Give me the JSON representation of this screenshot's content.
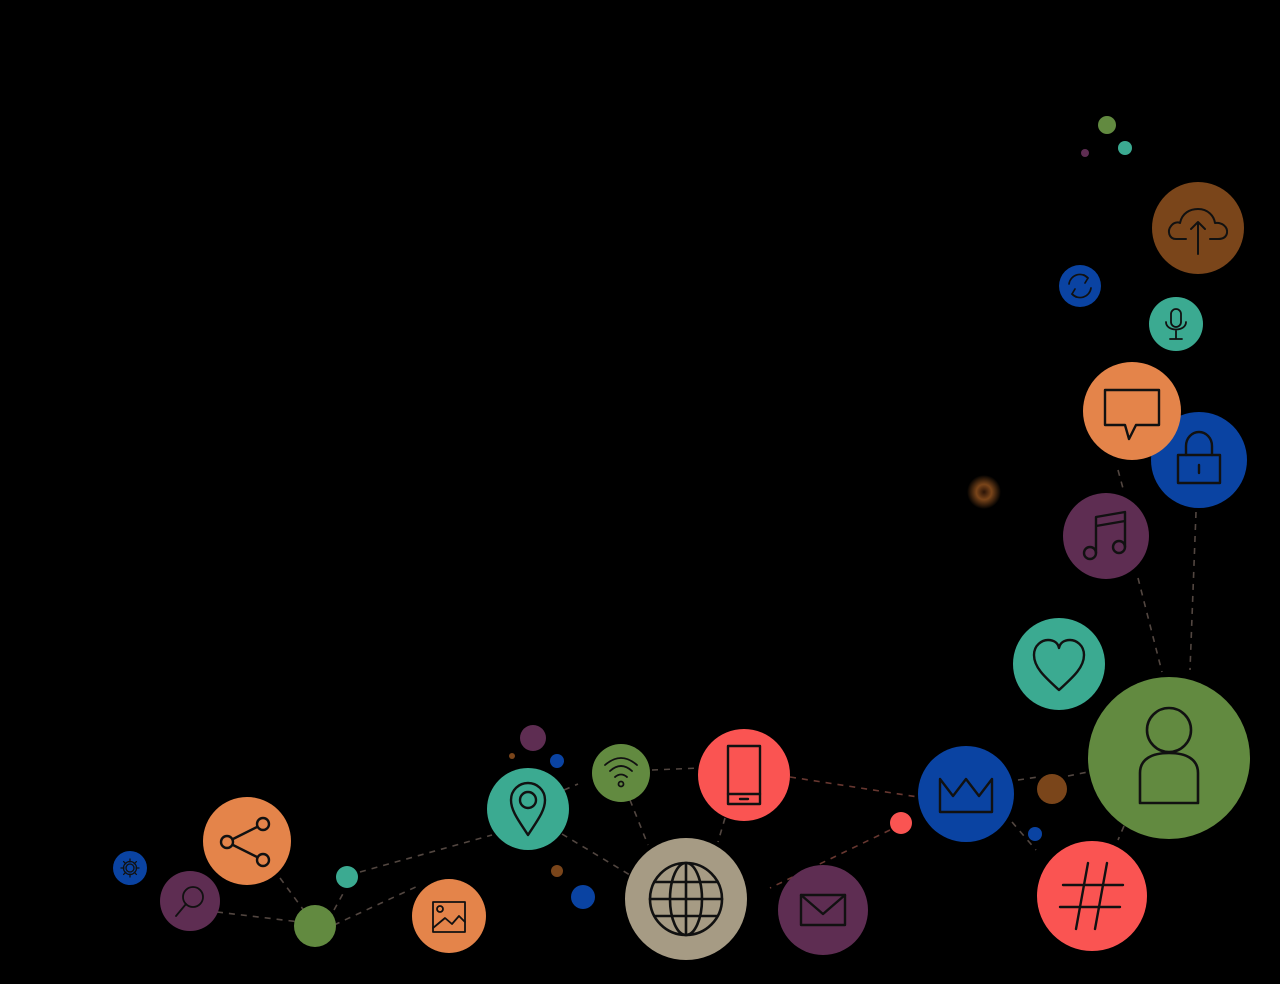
{
  "palette": {
    "background": "#000000",
    "orange": "#E4844A",
    "plum": "#5E2D52",
    "teal": "#3BAA91",
    "olive": "#628A40",
    "coral": "#FA5452",
    "blue": "#0A43A2",
    "brown": "#7A451A",
    "taupe": "#A69B84",
    "dash_light": "#6E5D55",
    "dash_warm": "#8A4A40",
    "icon_stroke": "#111111"
  },
  "nodes": [
    {
      "name": "settings-node",
      "icon": "gear-icon",
      "color": "blue"
    },
    {
      "name": "search-node",
      "icon": "search-icon",
      "color": "plum"
    },
    {
      "name": "share-node",
      "icon": "share-icon",
      "color": "orange"
    },
    {
      "name": "image-node",
      "icon": "image-icon",
      "color": "orange"
    },
    {
      "name": "location-node",
      "icon": "location-pin-icon",
      "color": "teal"
    },
    {
      "name": "wifi-node",
      "icon": "wifi-icon",
      "color": "olive"
    },
    {
      "name": "globe-node",
      "icon": "globe-icon",
      "color": "taupe"
    },
    {
      "name": "mobile-node",
      "icon": "smartphone-icon",
      "color": "coral"
    },
    {
      "name": "mail-node",
      "icon": "envelope-icon",
      "color": "plum"
    },
    {
      "name": "crown-node",
      "icon": "crown-icon",
      "color": "blue"
    },
    {
      "name": "hashtag-node",
      "icon": "hashtag-icon",
      "color": "coral"
    },
    {
      "name": "user-node",
      "icon": "user-icon",
      "color": "olive"
    },
    {
      "name": "favorite-node",
      "icon": "heart-icon",
      "color": "teal"
    },
    {
      "name": "music-node",
      "icon": "music-note-icon",
      "color": "plum"
    },
    {
      "name": "lock-node",
      "icon": "padlock-icon",
      "color": "blue"
    },
    {
      "name": "comment-node",
      "icon": "speech-bubble-icon",
      "color": "orange"
    },
    {
      "name": "microphone-node",
      "icon": "microphone-icon",
      "color": "teal"
    },
    {
      "name": "sync-node",
      "icon": "refresh-icon",
      "color": "blue"
    },
    {
      "name": "cloud-upload-node",
      "icon": "cloud-upload-icon",
      "color": "brown"
    }
  ]
}
